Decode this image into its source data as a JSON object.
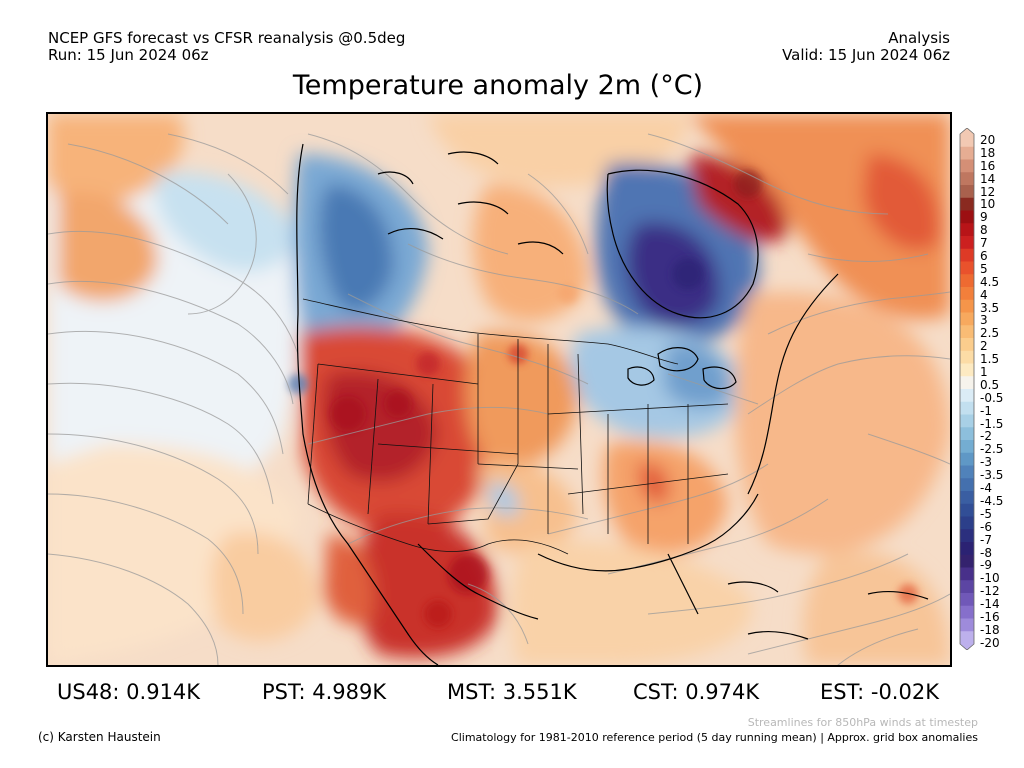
{
  "header": {
    "line1": "NCEP GFS forecast vs CFSR reanalysis @0.5deg",
    "line2": "Run: 15 Jun 2024 06z",
    "right1": "Analysis",
    "right2": "Valid: 15 Jun 2024 06z"
  },
  "title": "Temperature anomaly 2m (°C)",
  "colorbar": {
    "labels": [
      "20",
      "18",
      "16",
      "14",
      "12",
      "10",
      "9",
      "8",
      "7",
      "6",
      "5",
      "4.5",
      "4",
      "3.5",
      "3",
      "2.5",
      "2",
      "1.5",
      "1",
      "0.5",
      "-0.5",
      "-1",
      "-1.5",
      "-2",
      "-2.5",
      "-3",
      "-3.5",
      "-4",
      "-4.5",
      "-5",
      "-6",
      "-7",
      "-8",
      "-9",
      "-10",
      "-12",
      "-14",
      "-16",
      "-18",
      "-20"
    ],
    "colors": [
      "#f2c9b3",
      "#e6ad93",
      "#d48f76",
      "#bf7760",
      "#a9614d",
      "#8a2a20",
      "#9c0f12",
      "#b81418",
      "#cc2020",
      "#de3a26",
      "#e9522c",
      "#ee6a31",
      "#f27f3b",
      "#f5954a",
      "#f7a95e",
      "#f9bc75",
      "#fbcd8d",
      "#fcdca6",
      "#fdeac2",
      "#f6f3ec",
      "#dbecf6",
      "#c2dfef",
      "#a8d0e6",
      "#8dbfdc",
      "#74add2",
      "#5f98c6",
      "#5082ba",
      "#4470ae",
      "#3a5ea2",
      "#314e96",
      "#2c3f8a",
      "#2b2f7e",
      "#2b2273",
      "#34226e",
      "#48308a",
      "#5c45a3",
      "#7058b8",
      "#866fcb",
      "#9e8bdb",
      "#bdb0ec"
    ]
  },
  "stats": [
    {
      "label": "US48: 0.914K"
    },
    {
      "label": "PST: 4.989K"
    },
    {
      "label": "MST: 3.551K"
    },
    {
      "label": "CST: 0.974K"
    },
    {
      "label": "EST: -0.02K"
    }
  ],
  "notes": {
    "streamlines": "Streamlines for 850hPa winds at timestep",
    "credit": "(c) Karsten Haustein",
    "climatology": "Climatology for 1981-2010 reference period (5 day running mean) | Approx. grid box anomalies"
  }
}
